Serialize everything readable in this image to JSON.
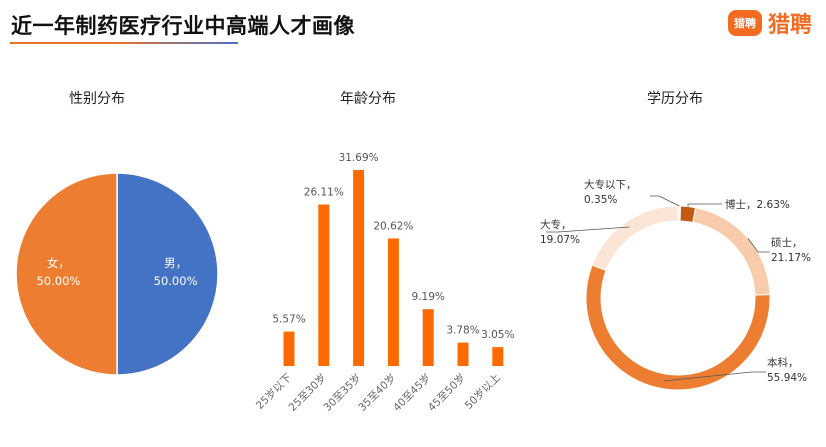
{
  "header": {
    "title": "近一年制药医疗行业中高端人才画像",
    "logo_mark_text": "猎聘",
    "logo_text": "猎聘",
    "accent_color": "#f36b21"
  },
  "chart_data": [
    {
      "type": "pie",
      "title": "性别分布",
      "slices": [
        {
          "label": "男",
          "value": 50.0,
          "display": "50.00%",
          "color": "#4472c4"
        },
        {
          "label": "女",
          "value": 50.0,
          "display": "50.00%",
          "color": "#ed7d31"
        }
      ]
    },
    {
      "type": "bar",
      "title": "年龄分布",
      "categories": [
        "25岁以下",
        "25至30岁",
        "30至35岁",
        "35至40岁",
        "40至45岁",
        "45至50岁",
        "50岁以上"
      ],
      "values": [
        5.57,
        26.11,
        31.69,
        20.62,
        9.19,
        3.78,
        3.05
      ],
      "value_labels": [
        "5.57%",
        "26.11%",
        "31.69%",
        "20.62%",
        "9.19%",
        "3.78%",
        "3.05%"
      ],
      "bar_color": "#ff6a00"
    },
    {
      "type": "pie",
      "subtype": "donut",
      "title": "学历分布",
      "slices": [
        {
          "label": "博士",
          "value": 2.63,
          "display": "2.63%",
          "color": "#c65911"
        },
        {
          "label": "硕士",
          "value": 21.17,
          "display": "21.17%",
          "color": "#f8cbad"
        },
        {
          "label": "本科",
          "value": 55.94,
          "display": "55.94%",
          "color": "#ed7d31"
        },
        {
          "label": "大专",
          "value": 19.07,
          "display": "19.07%",
          "color": "#fbe5d6"
        },
        {
          "label": "大专以下",
          "value": 0.35,
          "display": "0.35%",
          "color": "#fdf2ea"
        }
      ]
    }
  ]
}
